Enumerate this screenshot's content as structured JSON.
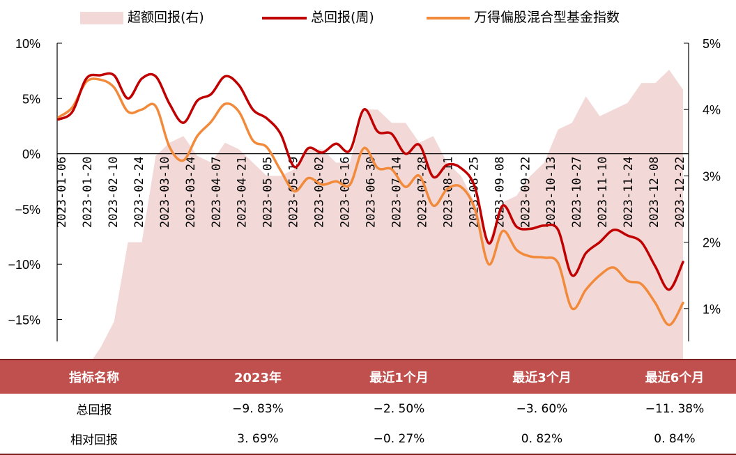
{
  "legend": {
    "excess": "超额回报(右)",
    "total": "总回报(周)",
    "index": "万得偏股混合型基金指数"
  },
  "colors": {
    "excess_fill": "#f2d9d7",
    "total_line": "#c00000",
    "index_line": "#f28a3c",
    "table_header_bg": "#c0504d",
    "table_header_text": "#ffffff"
  },
  "chart_data": {
    "type": "line",
    "title": "",
    "x_tick_labels": [
      "2023-01-06",
      "2023-01-20",
      "2023-02-10",
      "2023-02-24",
      "2023-03-10",
      "2023-03-24",
      "2023-04-07",
      "2023-04-21",
      "2023-05-05",
      "2023-05-19",
      "2023-06-02",
      "2023-06-16",
      "2023-06-30",
      "2023-07-14",
      "2023-07-28",
      "2023-08-11",
      "2023-08-25",
      "2023-09-08",
      "2023-09-22",
      "2023-10-13",
      "2023-10-27",
      "2023-11-10",
      "2023-11-24",
      "2023-12-08",
      "2023-12-22"
    ],
    "y_left": {
      "min": -15,
      "max": 10,
      "ticks": [
        10,
        5,
        0,
        -5,
        -10,
        -15
      ],
      "tick_labels": [
        "10%",
        "5%",
        "0%",
        "−5%",
        "−10%",
        "−15%"
      ]
    },
    "y_right": {
      "min": 0,
      "max": 5,
      "ticks": [
        5,
        4,
        3,
        2,
        1
      ],
      "tick_labels": [
        "5%",
        "4%",
        "3%",
        "2%",
        "1%"
      ]
    },
    "series": [
      {
        "name": "总回报(周)",
        "axis": "left",
        "values": [
          3.1,
          3.8,
          6.8,
          7.1,
          7.1,
          5.0,
          6.8,
          7.0,
          4.5,
          2.8,
          4.8,
          5.4,
          7.0,
          6.2,
          4.0,
          3.2,
          1.8,
          -1.2,
          0.5,
          0.1,
          0.9,
          0.3,
          4.0,
          2.0,
          1.8,
          0.0,
          0.8,
          -2.1,
          -1.0,
          -1.3,
          -3.0,
          -8.1,
          -4.7,
          -6.6,
          -6.8,
          -6.5,
          -6.9,
          -11.0,
          -9.0,
          -8.0,
          -6.9,
          -7.4,
          -8.0,
          -10.2,
          -12.3,
          -9.8
        ]
      },
      {
        "name": "万得偏股混合型基金指数",
        "axis": "left",
        "values": [
          3.3,
          4.2,
          6.5,
          6.7,
          6.0,
          3.8,
          4.0,
          4.3,
          0.6,
          -0.6,
          1.6,
          2.9,
          4.5,
          3.8,
          1.2,
          0.6,
          -1.5,
          -3.4,
          -2.2,
          -2.8,
          -2.5,
          -2.8,
          0.5,
          -1.3,
          -1.4,
          -3.0,
          -2.0,
          -4.7,
          -3.2,
          -3.0,
          -5.0,
          -10.0,
          -7.0,
          -8.7,
          -9.3,
          -9.4,
          -9.9,
          -14.0,
          -12.3,
          -11.0,
          -10.3,
          -11.5,
          -11.8,
          -13.5,
          -15.5,
          -13.5
        ]
      },
      {
        "name": "超额回报(右)",
        "axis": "right",
        "type": "area",
        "values": [
          0.05,
          0.1,
          0.1,
          0.4,
          0.8,
          2.0,
          2.0,
          3.3,
          3.5,
          3.6,
          3.3,
          3.2,
          3.5,
          3.4,
          3.2,
          3.0,
          3.0,
          3.1,
          3.4,
          3.4,
          3.2,
          3.2,
          4.0,
          4.0,
          3.8,
          3.8,
          3.5,
          3.6,
          3.2,
          3.0,
          2.6,
          2.0,
          2.6,
          2.7,
          3.0,
          3.2,
          3.7,
          3.8,
          4.2,
          3.9,
          4.0,
          4.1,
          4.4,
          4.4,
          4.6,
          4.3
        ]
      }
    ],
    "grid": false,
    "legend_position": "top"
  },
  "table": {
    "headers": [
      "指标名称",
      "2023年",
      "最近1个月",
      "最近3个月",
      "最近6个月"
    ],
    "rows": [
      [
        "总回报",
        "−9. 83%",
        "−2. 50%",
        "−3. 60%",
        "−11. 38%"
      ],
      [
        "相对回报",
        "3. 69%",
        "−0. 27%",
        "0. 82%",
        "0. 84%"
      ]
    ]
  }
}
